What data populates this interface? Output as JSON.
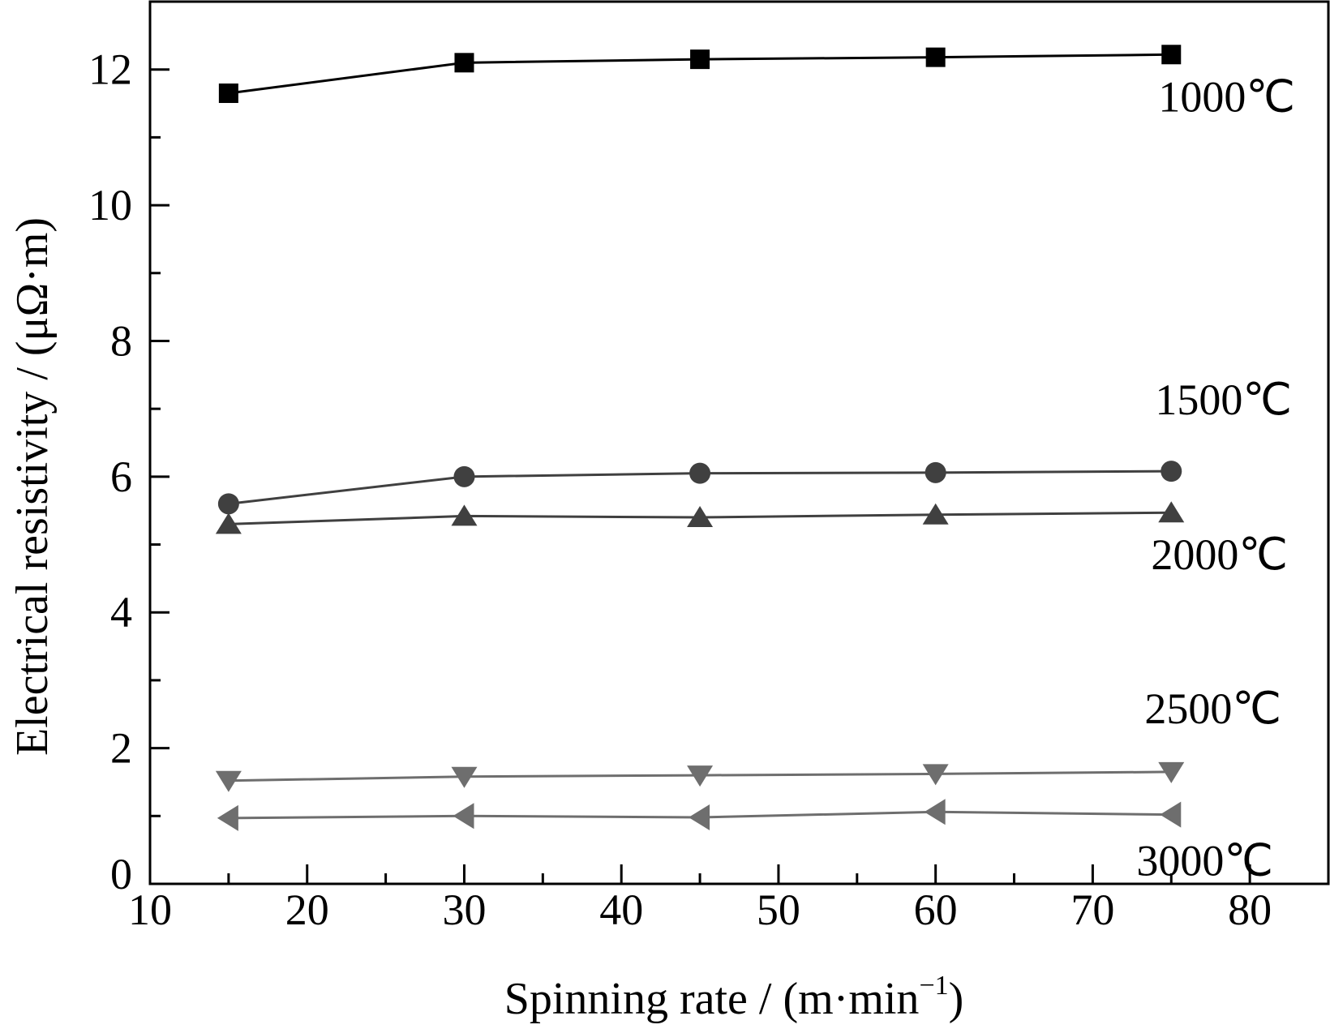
{
  "chart_data": {
    "type": "line",
    "xlabel": "Spinning rate / (m·min",
    "xlabel_sup": "−1",
    "xlabel_close": ")",
    "ylabel": "Electrical resistivity / (μΩ·m)",
    "xlim": [
      10,
      85
    ],
    "ylim": [
      0,
      13
    ],
    "xticks": [
      10,
      20,
      30,
      40,
      50,
      60,
      70,
      80
    ],
    "yticks": [
      0,
      2,
      4,
      6,
      8,
      10,
      12
    ],
    "grid": false,
    "x": [
      15,
      30,
      45,
      60,
      75
    ],
    "series": [
      {
        "name": "1000℃",
        "marker": "square",
        "color": "#000000",
        "values": [
          11.65,
          12.1,
          12.15,
          12.18,
          12.22
        ]
      },
      {
        "name": "1500℃",
        "marker": "circle",
        "color": "#404040",
        "values": [
          5.6,
          6.0,
          6.05,
          6.06,
          6.08
        ]
      },
      {
        "name": "2000℃",
        "marker": "triangle-up",
        "color": "#404040",
        "values": [
          5.3,
          5.42,
          5.4,
          5.44,
          5.47
        ]
      },
      {
        "name": "2500℃",
        "marker": "triangle-down",
        "color": "#6e6e6e",
        "values": [
          1.52,
          1.58,
          1.6,
          1.62,
          1.65
        ]
      },
      {
        "name": "3000℃",
        "marker": "triangle-left",
        "color": "#6e6e6e",
        "values": [
          0.97,
          1.0,
          0.98,
          1.06,
          1.02
        ]
      }
    ]
  }
}
